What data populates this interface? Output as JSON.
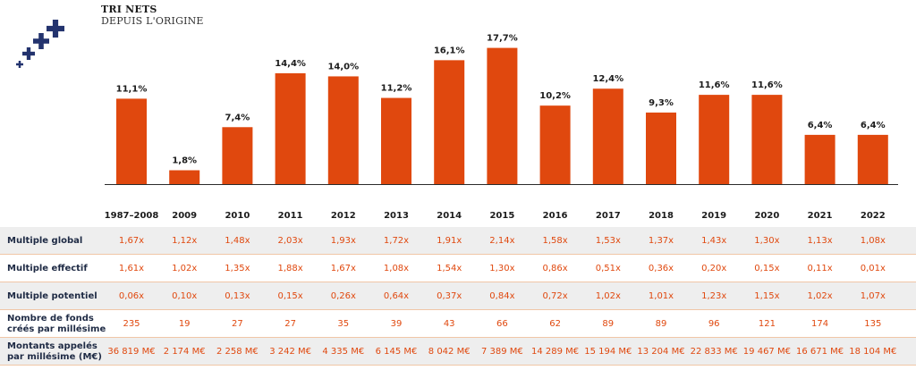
{
  "header": {
    "title": "TRI NETS",
    "subtitle": "DEPUIS L'ORIGINE"
  },
  "colors": {
    "bar": "#e0480e",
    "label": "#1b1b1b",
    "logo": "#23336e",
    "row_label": "#1e2a44",
    "table_value": "#e0480e"
  },
  "logo": {
    "icon": "plus-cluster-icon"
  },
  "chart_data": {
    "type": "bar",
    "categories": [
      "1987–2008",
      "2009",
      "2010",
      "2011",
      "2012",
      "2013",
      "2014",
      "2015",
      "2016",
      "2017",
      "2018",
      "2019",
      "2020",
      "2021",
      "2022"
    ],
    "values": [
      11.1,
      1.8,
      7.4,
      14.4,
      14.0,
      11.2,
      16.1,
      17.7,
      10.2,
      12.4,
      9.3,
      11.6,
      11.6,
      6.4,
      6.4
    ],
    "value_labels": [
      "11,1%",
      "1,8%",
      "7,4%",
      "14,4%",
      "14,0%",
      "11,2%",
      "16,1%",
      "17,7%",
      "10,2%",
      "12,4%",
      "9,3%",
      "11,6%",
      "11,6%",
      "6,4%",
      "6,4%"
    ],
    "title": "TRI NETS",
    "subtitle": "DEPUIS L'ORIGINE",
    "xlabel": "",
    "ylabel": "",
    "ylim": [
      0,
      18
    ],
    "grid": false,
    "legend": "none"
  },
  "table": {
    "rows": [
      {
        "label": "Multiple global",
        "shaded": true,
        "values": [
          "1,67x",
          "1,12x",
          "1,48x",
          "2,03x",
          "1,93x",
          "1,72x",
          "1,91x",
          "2,14x",
          "1,58x",
          "1,53x",
          "1,37x",
          "1,43x",
          "1,30x",
          "1,13x",
          "1,08x"
        ]
      },
      {
        "label": "Multiple effectif",
        "shaded": false,
        "values": [
          "1,61x",
          "1,02x",
          "1,35x",
          "1,88x",
          "1,67x",
          "1,08x",
          "1,54x",
          "1,30x",
          "0,86x",
          "0,51x",
          "0,36x",
          "0,20x",
          "0,15x",
          "0,11x",
          "0,01x"
        ]
      },
      {
        "label": "Multiple potentiel",
        "shaded": true,
        "values": [
          "0,06x",
          "0,10x",
          "0,13x",
          "0,15x",
          "0,26x",
          "0,64x",
          "0,37x",
          "0,84x",
          "0,72x",
          "1,02x",
          "1,01x",
          "1,23x",
          "1,15x",
          "1,02x",
          "1,07x"
        ]
      },
      {
        "label": "Nombre de fonds créés par millésime",
        "shaded": false,
        "values": [
          "235",
          "19",
          "27",
          "27",
          "35",
          "39",
          "43",
          "66",
          "62",
          "89",
          "89",
          "96",
          "121",
          "174",
          "135"
        ]
      },
      {
        "label": "Montants appelés par millésime (M€)",
        "shaded": true,
        "values": [
          "36 819 M€",
          "2 174 M€",
          "2 258 M€",
          "3 242 M€",
          "4 335 M€",
          "6 145 M€",
          "8 042 M€",
          "7 389 M€",
          "14 289 M€",
          "15 194 M€",
          "13 204 M€",
          "22 833 M€",
          "19 467 M€",
          "16 671 M€",
          "18 104 M€"
        ]
      }
    ]
  }
}
